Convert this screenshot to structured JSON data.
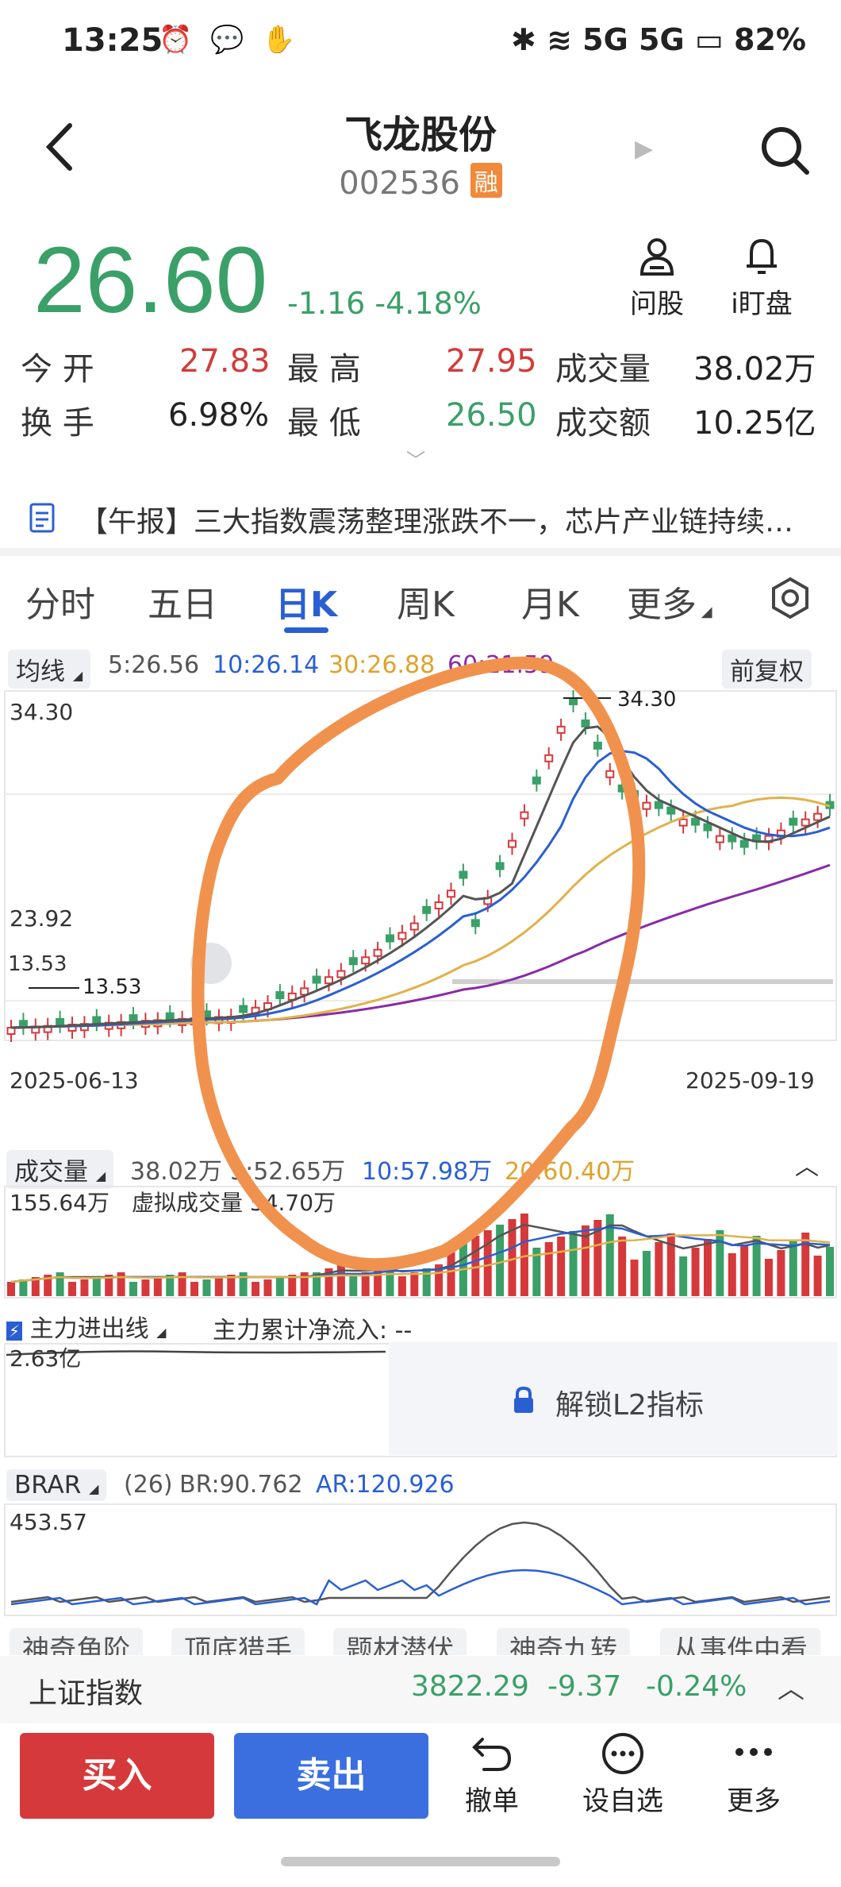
{
  "status": {
    "time": "13:25",
    "left_icons": "⏰ 💬 ✋",
    "right": "✱ ≋ 5G 5G ▭ 82%"
  },
  "header": {
    "title": "飞龙股份",
    "code": "002536",
    "badge": "融"
  },
  "quote": {
    "price": "26.60",
    "change": "-1.16",
    "change_pct": "-4.18%",
    "actions": [
      "问股",
      "i盯盘"
    ],
    "open_label": "今  开",
    "open": "27.83",
    "high_label": "最  高",
    "high": "27.95",
    "volume_label": "成交量",
    "volume": "38.02万",
    "turnover_label": "换  手",
    "turnover": "6.98%",
    "low_label": "最  低",
    "low": "26.50",
    "amount_label": "成交额",
    "amount": "10.25亿"
  },
  "news": {
    "text": "【午报】三大指数震荡整理涨跌不一，芯片产业链持续…"
  },
  "tabs": [
    "分时",
    "五日",
    "日K",
    "周K",
    "月K",
    "更多"
  ],
  "active_tab": "日K",
  "kline": {
    "ma_label": "均线",
    "ma5": "5:26.56",
    "ma10": "10:26.14",
    "ma30": "30:26.88",
    "ma60": "60:21.59",
    "adjust": "前复权",
    "y_top": "34.30",
    "y_mid": "23.92",
    "y_low": "13.53",
    "max_marker": "34.30",
    "min_marker": "13.53",
    "date_start": "2025-06-13",
    "date_end": "2025-09-19"
  },
  "volume": {
    "label": "成交量",
    "v1": "38.02万",
    "v5": "5:52.65万",
    "v10": "10:57.98万",
    "v20": "20:60.40万",
    "max": "155.64万",
    "virtual": "虚拟成交量 54.70万"
  },
  "fund": {
    "label": "主力进出线",
    "cum": "主力累计净流入: --",
    "value": "2.63亿",
    "lock": "解锁L2指标"
  },
  "brar": {
    "label": "BRAR",
    "param": "(26)",
    "br": "BR:90.762",
    "ar": "AR:120.926",
    "max": "453.57"
  },
  "tags": [
    "神奇角阶",
    "顶底猎手",
    "题材潜伏",
    "神奇九转",
    "从事件中看"
  ],
  "index": {
    "name": "上证指数",
    "value": "3822.29",
    "change": "-9.37",
    "pct": "-0.24%"
  },
  "bottom": {
    "buy": "买入",
    "sell": "卖出",
    "cancel": "撤单",
    "watchlist": "设自选",
    "more": "更多"
  },
  "colors": {
    "up": "#d6393b",
    "down": "#3aa068",
    "accent": "#2a5fd3",
    "annotation": "#f0924e"
  }
}
